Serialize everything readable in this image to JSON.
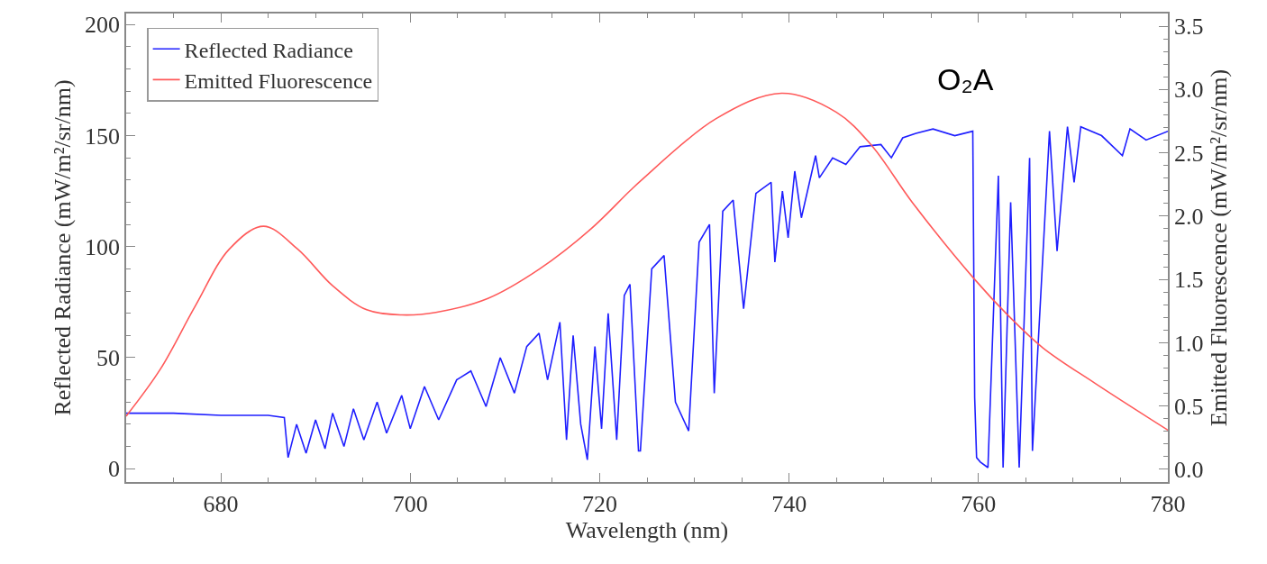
{
  "chart_data": {
    "type": "line",
    "xlabel": "Wavelength (nm)",
    "ylabel": "Reflected Radiance (mW/m²/sr/nm)",
    "y2label": "Emitted Fluorescence (mW/m²/sr/nm)",
    "xlim": [
      670,
      780
    ],
    "xticks": [
      680,
      700,
      720,
      740,
      760,
      780
    ],
    "ylim": [
      -6,
      205
    ],
    "yticks": [
      0,
      50,
      100,
      150,
      200
    ],
    "y2lim": [
      -0.1,
      3.6
    ],
    "y2ticks": [
      {
        "value": 0,
        "label": "0.0"
      },
      0.5,
      {
        "value": 1,
        "label": "1.0"
      },
      1.5,
      {
        "value": 2,
        "label": "2.0"
      },
      2.5,
      {
        "value": 3,
        "label": "3.0"
      },
      3.5
    ],
    "legend": "top left",
    "line_style": "solid",
    "annotations": [
      "O₂A"
    ],
    "series": [
      {
        "name": "Reflected Radiance",
        "color": "#1f1fff",
        "x": [
          670,
          675,
          680,
          685,
          686.7,
          687.1,
          688,
          689,
          690,
          691,
          691.8,
          693,
          694,
          695.1,
          696.5,
          697.5,
          699.1,
          700,
          701.5,
          703,
          704.9,
          706.4,
          708,
          709.5,
          711,
          712.3,
          713.6,
          714.5,
          715.8,
          716.5,
          717.2,
          718.0,
          718.7,
          719.5,
          720.2,
          720.9,
          721.8,
          722.6,
          723.2,
          724.1,
          724.3,
          725.5,
          726.8,
          728.0,
          729.4,
          730.5,
          731.6,
          732.1,
          733.0,
          734.1,
          735.2,
          736.5,
          738.1,
          738.5,
          739.3,
          739.9,
          740.6,
          741.3,
          742.8,
          743.2,
          744.6,
          746.0,
          747.5,
          749.7,
          750.8,
          752.0,
          753.4,
          755.2,
          757.5,
          759.4,
          759.6,
          759.8,
          760.2,
          761.0,
          762.1,
          762.6,
          763.4,
          764.3,
          765.4,
          765.7,
          767.5,
          768.3,
          769.4,
          770.1,
          770.8,
          773.0,
          775.2,
          776.0,
          777.7,
          780
        ],
        "values": [
          25,
          25,
          24,
          24,
          23,
          5,
          20,
          7,
          22,
          9,
          25,
          10,
          27,
          13,
          30,
          16,
          33,
          18,
          37,
          22,
          40,
          44,
          28,
          50,
          34,
          55,
          61,
          40,
          66,
          13,
          60,
          20,
          4,
          55,
          18,
          70,
          13,
          78,
          83,
          8,
          8,
          90,
          96,
          30,
          17,
          102,
          110,
          34,
          116,
          121,
          72,
          124,
          129,
          93,
          125,
          104,
          134,
          113,
          141,
          131,
          140,
          137,
          145,
          146,
          140,
          149,
          151,
          153,
          150,
          152,
          32,
          5,
          3,
          0.5,
          132,
          0.5,
          120,
          0.5,
          140,
          8,
          152,
          98,
          154,
          129,
          154,
          150,
          141,
          153,
          148,
          152
        ]
      },
      {
        "name": "Emitted Fluorescence",
        "color": "#ff5a5a",
        "axis": "y2",
        "x": [
          670,
          673.6,
          677.3,
          680.9,
          684.5,
          688.1,
          691.8,
          695.4,
          699.1,
          702.7,
          708.2,
          713.6,
          719.1,
          723.2,
          724.5,
          732.3,
          739.2,
          745.0,
          748.7,
          753.0,
          759.6,
          763.2,
          766.8,
          772.3,
          780
        ],
        "values": [
          0.42,
          0.79,
          1.29,
          1.74,
          1.92,
          1.74,
          1.45,
          1.26,
          1.22,
          1.24,
          1.35,
          1.58,
          1.9,
          2.2,
          2.29,
          2.77,
          2.97,
          2.82,
          2.56,
          2.11,
          1.5,
          1.21,
          0.96,
          0.68,
          0.31
        ]
      }
    ]
  }
}
